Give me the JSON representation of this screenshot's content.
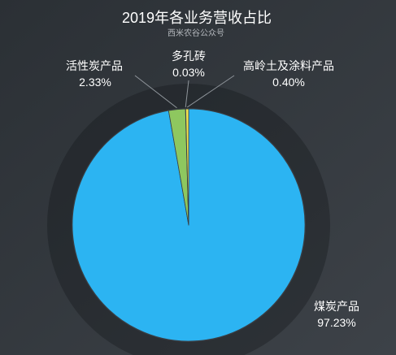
{
  "chart_data": {
    "type": "pie",
    "title": "2019年各业务营收占比",
    "subtitle": "西米农谷公众号",
    "categories": [
      "煤炭产品",
      "活性炭产品",
      "多孔砖",
      "高岭土及涂料产品"
    ],
    "values": [
      97.23,
      2.33,
      0.03,
      0.4
    ],
    "colors": [
      "#2cb4f2",
      "#8ec75f",
      "#f0804a",
      "#f3e54e"
    ],
    "start": "top",
    "direction": "clockwise",
    "show_legend": false
  }
}
